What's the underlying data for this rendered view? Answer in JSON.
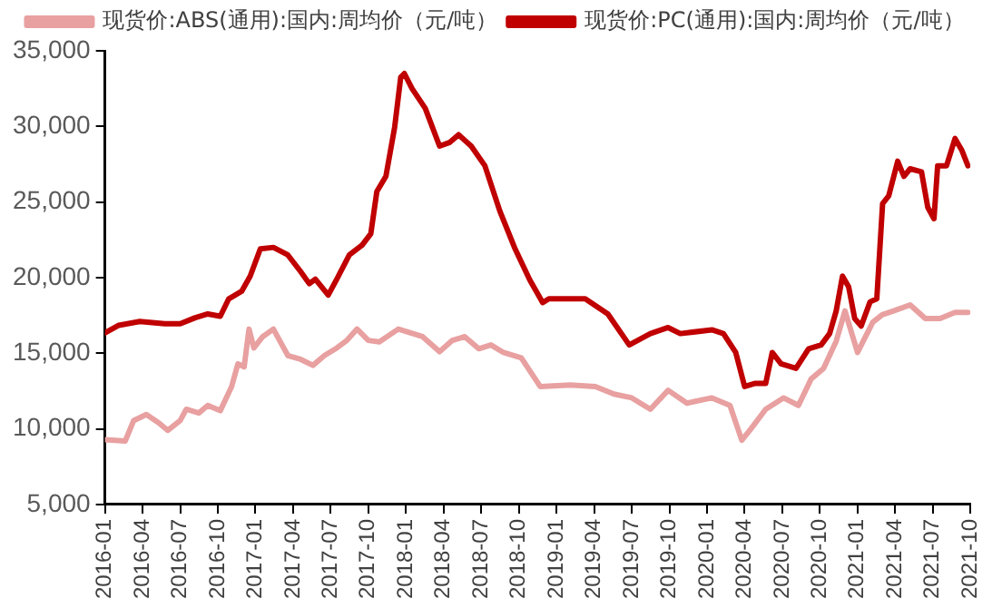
{
  "chart_data": {
    "type": "line",
    "xlim": [
      "2016-01",
      "2021-10"
    ],
    "xticks": [
      "2016-01",
      "2016-04",
      "2016-07",
      "2016-10",
      "2017-01",
      "2017-04",
      "2017-07",
      "2017-10",
      "2018-01",
      "2018-04",
      "2018-07",
      "2018-10",
      "2019-01",
      "2019-04",
      "2019-07",
      "2019-10",
      "2020-01",
      "2020-04",
      "2020-07",
      "2020-10",
      "2021-01",
      "2021-04",
      "2021-07",
      "2021-10"
    ],
    "ylim": [
      5000,
      35000
    ],
    "yticks": [
      {
        "value": 5000,
        "label": "5,000"
      },
      {
        "value": 10000,
        "label": "10,000"
      },
      {
        "value": 15000,
        "label": "15,000"
      },
      {
        "value": 20000,
        "label": "20,000"
      },
      {
        "value": 25000,
        "label": "25,000"
      },
      {
        "value": 30000,
        "label": "30,000"
      },
      {
        "value": 35000,
        "label": "35,000"
      }
    ],
    "grid": false,
    "legend": "top",
    "marker": "none",
    "line_style": "solid",
    "series": [
      {
        "name": "现货价:ABS(通用):国内:周均价（元/吨）",
        "color": "#e8a0a0",
        "x": [
          "2016-01-01",
          "2016-02-19",
          "2016-03-10",
          "2016-04-10",
          "2016-05-10",
          "2016-06-01",
          "2016-07-01",
          "2016-07-16",
          "2016-08-16",
          "2016-09-07",
          "2016-10-07",
          "2016-11-04",
          "2016-11-19",
          "2016-12-04",
          "2016-12-16",
          "2016-12-28",
          "2017-01-19",
          "2017-02-13",
          "2017-03-19",
          "2017-04-19",
          "2017-05-19",
          "2017-06-16",
          "2017-07-16",
          "2017-08-10",
          "2017-09-04",
          "2017-10-01",
          "2017-10-28",
          "2017-12-13",
          "2018-02-10",
          "2018-03-22",
          "2018-04-22",
          "2018-05-22",
          "2018-06-25",
          "2018-07-25",
          "2018-08-25",
          "2018-10-07",
          "2018-11-22",
          "2019-02-04",
          "2019-04-04",
          "2019-05-19",
          "2019-07-01",
          "2019-08-16",
          "2019-09-28",
          "2019-11-13",
          "2020-01-13",
          "2020-02-25",
          "2020-03-25",
          "2020-04-16",
          "2020-05-22",
          "2020-07-04",
          "2020-08-10",
          "2020-09-10",
          "2020-10-10",
          "2020-11-10",
          "2020-12-01",
          "2021-01-01",
          "2021-02-07",
          "2021-02-28",
          "2021-03-28",
          "2021-05-07",
          "2021-06-13",
          "2021-07-19",
          "2021-08-25",
          "2021-09-25"
        ],
        "values": [
          9290,
          9200,
          10550,
          10950,
          10400,
          9900,
          10550,
          11300,
          11050,
          11550,
          11200,
          12800,
          14300,
          14100,
          16600,
          15350,
          16100,
          16600,
          14850,
          14600,
          14200,
          14850,
          15350,
          15850,
          16600,
          15850,
          15750,
          16600,
          16100,
          15100,
          15850,
          16100,
          15300,
          15550,
          15050,
          14700,
          12800,
          12900,
          12800,
          12300,
          12050,
          11300,
          12550,
          11700,
          12050,
          11550,
          9250,
          10000,
          11300,
          12050,
          11550,
          13300,
          14000,
          15800,
          17800,
          15050,
          17050,
          17550,
          17800,
          18200,
          17300,
          17300,
          17700,
          17700
        ]
      },
      {
        "name": "现货价:PC(通用):国内:周均价（元/吨）",
        "color": "#c00000",
        "x": [
          "2016-01-01",
          "2016-02-04",
          "2016-03-25",
          "2016-05-25",
          "2016-07-01",
          "2016-08-07",
          "2016-09-07",
          "2016-10-07",
          "2016-10-28",
          "2016-11-28",
          "2016-12-19",
          "2017-01-13",
          "2017-02-13",
          "2017-03-19",
          "2017-04-19",
          "2017-05-10",
          "2017-05-25",
          "2017-06-25",
          "2017-07-16",
          "2017-08-16",
          "2017-09-16",
          "2017-10-07",
          "2017-10-22",
          "2017-11-13",
          "2017-12-04",
          "2017-12-19",
          "2017-12-28",
          "2018-01-16",
          "2018-02-16",
          "2018-03-22",
          "2018-04-16",
          "2018-05-07",
          "2018-06-07",
          "2018-07-10",
          "2018-08-16",
          "2018-09-22",
          "2018-10-28",
          "2018-11-28",
          "2018-12-13",
          "2019-03-10",
          "2019-05-04",
          "2019-06-25",
          "2019-08-16",
          "2019-09-28",
          "2019-10-28",
          "2020-01-13",
          "2020-02-10",
          "2020-03-10",
          "2020-04-01",
          "2020-04-25",
          "2020-05-22",
          "2020-06-07",
          "2020-06-28",
          "2020-08-04",
          "2020-09-04",
          "2020-10-04",
          "2020-10-25",
          "2020-11-10",
          "2020-11-25",
          "2020-12-10",
          "2020-12-25",
          "2021-01-10",
          "2021-02-01",
          "2021-02-16",
          "2021-03-01",
          "2021-03-16",
          "2021-04-07",
          "2021-04-22",
          "2021-05-07",
          "2021-06-04",
          "2021-06-19",
          "2021-07-04",
          "2021-07-13",
          "2021-08-04",
          "2021-08-25",
          "2021-09-10",
          "2021-09-25"
        ],
        "values": [
          16350,
          16850,
          17100,
          16950,
          16950,
          17350,
          17600,
          17450,
          18600,
          19100,
          20100,
          21900,
          22000,
          21500,
          20400,
          19600,
          19900,
          18850,
          19900,
          21500,
          22150,
          22900,
          25700,
          26700,
          29950,
          33250,
          33500,
          32500,
          31200,
          28700,
          28950,
          29450,
          28700,
          27400,
          24400,
          21900,
          19850,
          18350,
          18600,
          18600,
          17600,
          15550,
          16300,
          16700,
          16300,
          16550,
          16300,
          15050,
          12800,
          13000,
          13000,
          15050,
          14300,
          14000,
          15300,
          15550,
          16300,
          17800,
          20100,
          19400,
          17300,
          16800,
          18400,
          18600,
          24900,
          25400,
          27700,
          26700,
          27200,
          27000,
          24650,
          23900,
          27400,
          27400,
          29200,
          28450,
          27400
        ]
      }
    ]
  }
}
